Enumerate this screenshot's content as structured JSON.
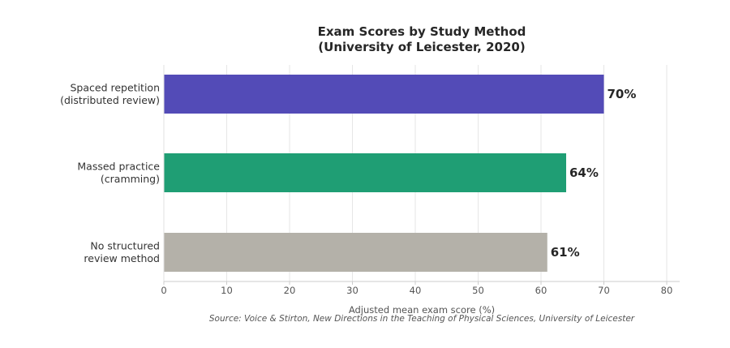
{
  "chart_data": {
    "type": "bar",
    "orientation": "horizontal",
    "title": [
      "Exam Scores by Study Method",
      "(University of Leicester, 2020)"
    ],
    "xlabel": "Adjusted mean exam score (%)",
    "source": "Source: Voice & Stirton, New Directions in the Teaching of Physical Sciences, University of Leicester",
    "categories": [
      [
        "Spaced repetition",
        "(distributed review)"
      ],
      [
        "Massed practice",
        "(cramming)"
      ],
      [
        "No structured",
        "review method"
      ]
    ],
    "values": [
      70,
      64,
      61
    ],
    "value_labels": [
      "70%",
      "64%",
      "61%"
    ],
    "colors": [
      "#534bb7",
      "#1f9e74",
      "#b4b1a9"
    ],
    "xlim": [
      0,
      80
    ],
    "xticks": [
      0,
      10,
      20,
      30,
      40,
      50,
      60,
      70,
      80
    ],
    "grid": "vertical"
  }
}
